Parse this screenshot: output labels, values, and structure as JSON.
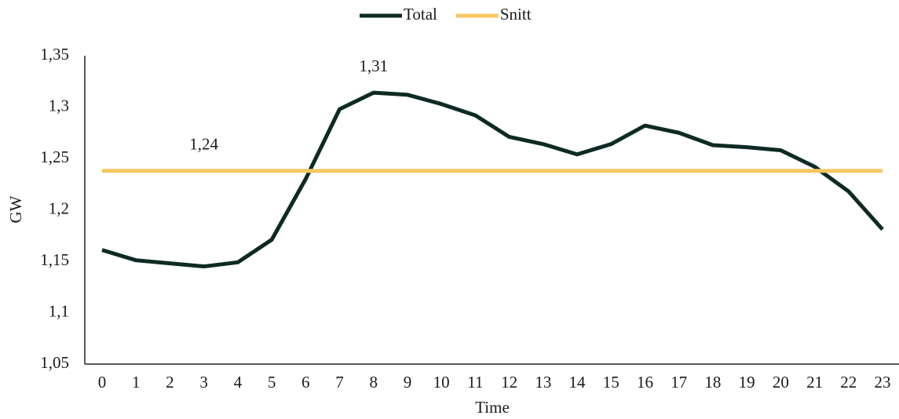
{
  "chart_data": {
    "type": "line",
    "x_label": "Time",
    "y_label": "GW",
    "categories": [
      "0",
      "1",
      "2",
      "3",
      "4",
      "5",
      "6",
      "7",
      "8",
      "9",
      "10",
      "11",
      "12",
      "13",
      "14",
      "15",
      "16",
      "17",
      "18",
      "19",
      "20",
      "21",
      "22",
      "23"
    ],
    "series": [
      {
        "name": "Total",
        "color": "#0d2b24",
        "values": [
          1.161,
          1.151,
          1.148,
          1.145,
          1.149,
          1.171,
          1.23,
          1.298,
          1.314,
          1.312,
          1.303,
          1.292,
          1.271,
          1.264,
          1.254,
          1.264,
          1.282,
          1.275,
          1.263,
          1.261,
          1.258,
          1.242,
          1.218,
          1.181
        ],
        "value_labels": [
          null,
          null,
          null,
          null,
          null,
          null,
          null,
          null,
          "1,31",
          null,
          null,
          null,
          null,
          null,
          null,
          null,
          null,
          null,
          null,
          null,
          null,
          null,
          null,
          null
        ]
      },
      {
        "name": "Snitt",
        "color": "#f5c862",
        "values": [
          1.238,
          1.238,
          1.238,
          1.238,
          1.238,
          1.238,
          1.238,
          1.238,
          1.238,
          1.238,
          1.238,
          1.238,
          1.238,
          1.238,
          1.238,
          1.238,
          1.238,
          1.238,
          1.238,
          1.238,
          1.238,
          1.238,
          1.238,
          1.238
        ],
        "value_labels": [
          null,
          null,
          null,
          "1,24",
          null,
          null,
          null,
          null,
          null,
          null,
          null,
          null,
          null,
          null,
          null,
          null,
          null,
          null,
          null,
          null,
          null,
          null,
          null,
          null
        ]
      }
    ],
    "ylim": [
      1.05,
      1.35
    ],
    "yticks": [
      {
        "value": 1.05,
        "label": "1,05"
      },
      {
        "value": 1.1,
        "label": "1,1"
      },
      {
        "value": 1.15,
        "label": "1,15"
      },
      {
        "value": 1.2,
        "label": "1,2"
      },
      {
        "value": 1.25,
        "label": "1,25"
      },
      {
        "value": 1.3,
        "label": "1,3"
      },
      {
        "value": 1.35,
        "label": "1,35"
      }
    ],
    "legend": "top",
    "grid": false
  }
}
